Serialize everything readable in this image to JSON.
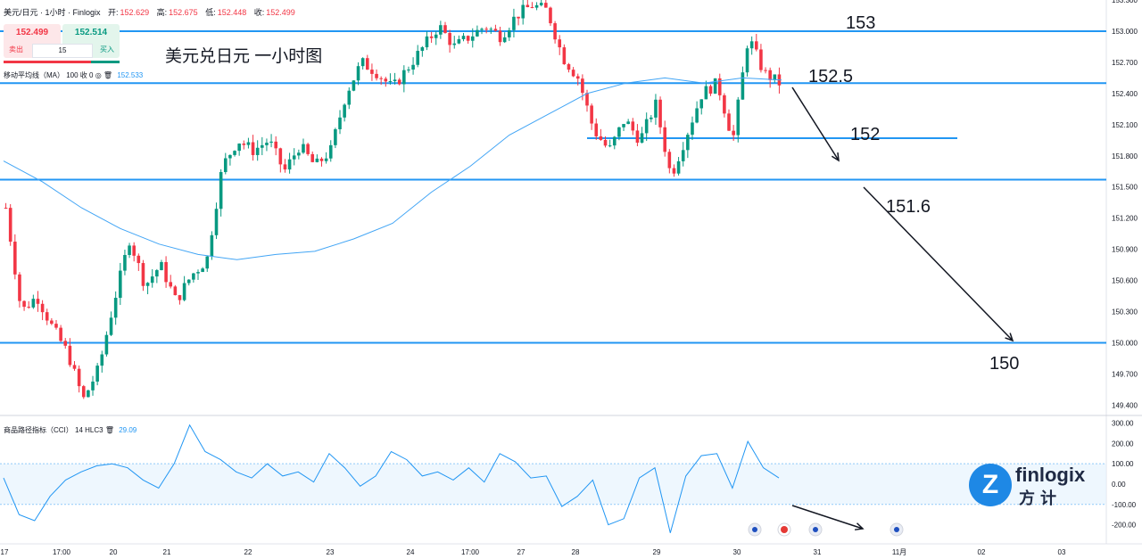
{
  "header": {
    "symbol": "美元/日元 · 1小时 · Finlogix",
    "open_label": "开:",
    "open": "152.629",
    "high_label": "高:",
    "high": "152.675",
    "low_label": "低:",
    "low": "152.448",
    "close_label": "收:",
    "close": "152.499"
  },
  "trade": {
    "sell_price": "152.499",
    "buy_price": "152.514",
    "sell_label": "卖出",
    "buy_label": "买入",
    "quantity": "15"
  },
  "indicators": {
    "ma_label": "移动平均线（MA） 100 收 0",
    "ma_value": "152.533",
    "cci_label": "商品路径指标（CCI） 14 HLC3",
    "cci_value": "29.09"
  },
  "annotation_title": "美元兑日元 一小时图",
  "logo": {
    "name": "finlogix",
    "chinese": "方计"
  },
  "colors": {
    "up": "#089981",
    "down": "#f23645",
    "line": "#2196f3",
    "ma": "#42a5f5"
  },
  "chart_data": {
    "type": "candlestick",
    "price_axis": {
      "ylim": [
        149.3,
        153.3
      ],
      "ticks": [
        "153.000",
        "152.700",
        "152.400",
        "152.100",
        "151.800",
        "151.500",
        "151.200",
        "150.900",
        "150.600",
        "150.300",
        "150.000",
        "149.700",
        "149.400"
      ],
      "extra_ticks": [
        "153.300"
      ]
    },
    "x_axis": {
      "labels": [
        "17",
        "17:00",
        "20",
        "21",
        "22",
        "23",
        "24",
        "17:00",
        "27",
        "28",
        "29",
        "30",
        "31",
        "11月",
        "02",
        "03"
      ]
    },
    "horizontal_levels": [
      {
        "value": 153.0,
        "label": "153"
      },
      {
        "value": 152.5,
        "label": "152.5"
      },
      {
        "value": 151.97,
        "label": "152"
      },
      {
        "value": 151.57,
        "label": "151.6"
      },
      {
        "value": 150.0,
        "label": "150"
      }
    ],
    "price_path": [
      151.3,
      150.3,
      150.45,
      150.15,
      149.9,
      149.45,
      149.75,
      150.4,
      151.0,
      150.55,
      150.75,
      150.4,
      150.65,
      150.8,
      151.7,
      151.95,
      151.85,
      151.95,
      151.65,
      151.9,
      151.7,
      151.85,
      152.4,
      152.7,
      152.6,
      152.45,
      152.65,
      152.85,
      153.05,
      152.85,
      152.95,
      153.05,
      152.95,
      153.15,
      153.25,
      153.2,
      152.75,
      152.55,
      152.05,
      151.85,
      152.15,
      151.95,
      152.3,
      151.6,
      152.0,
      152.4,
      152.5,
      151.95,
      152.95,
      152.6,
      152.5
    ],
    "ma_path": [
      151.75,
      151.55,
      151.3,
      151.1,
      150.95,
      150.85,
      150.8,
      150.85,
      150.88,
      151.0,
      151.15,
      151.45,
      151.7,
      152.0,
      152.2,
      152.4,
      152.5,
      152.55,
      152.5,
      152.55,
      152.53
    ],
    "cci": {
      "ylim": [
        -250,
        320
      ],
      "ticks": [
        "300.00",
        "200.00",
        "100.00",
        "0.00",
        "-100.00",
        "-200.00"
      ],
      "band": [
        -100,
        100
      ],
      "values": [
        30,
        -150,
        -180,
        -60,
        20,
        60,
        90,
        100,
        80,
        20,
        -20,
        100,
        290,
        160,
        120,
        60,
        30,
        100,
        40,
        60,
        10,
        150,
        80,
        -10,
        40,
        160,
        120,
        40,
        60,
        20,
        80,
        10,
        150,
        110,
        30,
        40,
        -110,
        -60,
        20,
        -200,
        -170,
        30,
        80,
        -240,
        40,
        140,
        150,
        -20,
        210,
        80,
        30
      ]
    }
  }
}
